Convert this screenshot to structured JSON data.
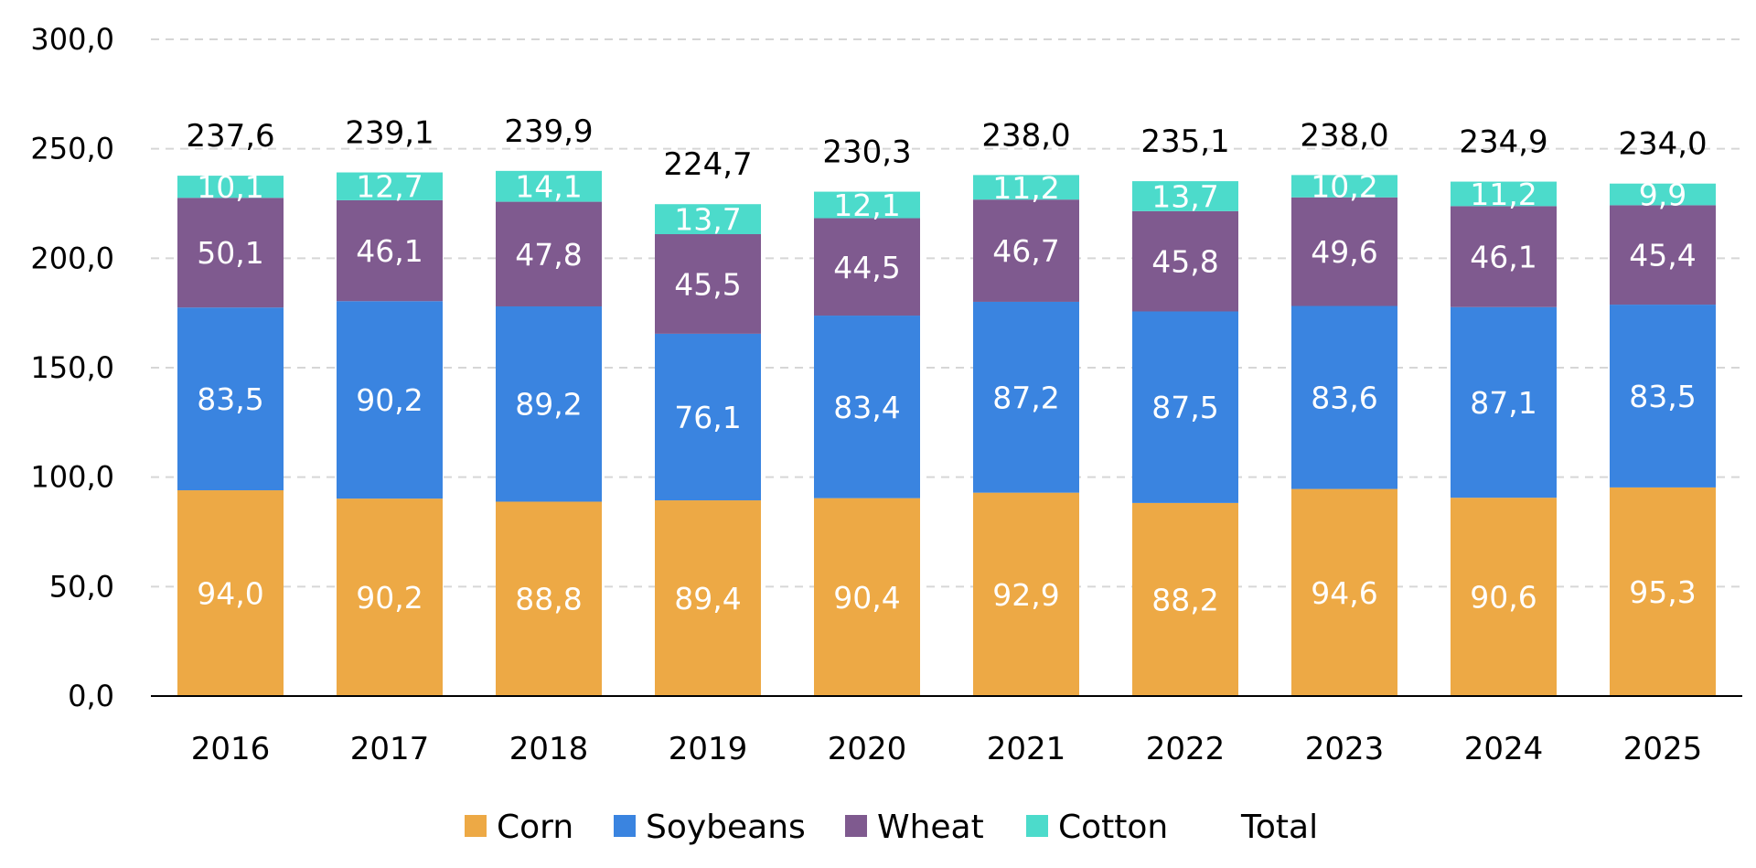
{
  "chart_data": {
    "type": "bar",
    "stacked": true,
    "categories": [
      "2016",
      "2017",
      "2018",
      "2019",
      "2020",
      "2021",
      "2022",
      "2023",
      "2024",
      "2025"
    ],
    "series": [
      {
        "name": "Corn",
        "color": "#EDA945",
        "values": [
          94.0,
          90.2,
          88.8,
          89.4,
          90.4,
          92.9,
          88.2,
          94.6,
          90.6,
          95.3
        ],
        "labels": [
          "94,0",
          "90,2",
          "88,8",
          "89,4",
          "90,4",
          "92,9",
          "88,2",
          "94,6",
          "90,6",
          "95,3"
        ]
      },
      {
        "name": "Soybeans",
        "color": "#3A84E0",
        "values": [
          83.5,
          90.2,
          89.2,
          76.1,
          83.4,
          87.2,
          87.5,
          83.6,
          87.1,
          83.5
        ],
        "labels": [
          "83,5",
          "90,2",
          "89,2",
          "76,1",
          "83,4",
          "87,2",
          "87,5",
          "83,6",
          "87,1",
          "83,5"
        ]
      },
      {
        "name": "Wheat",
        "color": "#7F5A8F",
        "values": [
          50.1,
          46.1,
          47.8,
          45.5,
          44.5,
          46.7,
          45.8,
          49.6,
          46.1,
          45.4
        ],
        "labels": [
          "50,1",
          "46,1",
          "47,8",
          "45,5",
          "44,5",
          "46,7",
          "45,8",
          "49,6",
          "46,1",
          "45,4"
        ]
      },
      {
        "name": "Cotton",
        "color": "#4CDBCB",
        "values": [
          10.1,
          12.7,
          14.1,
          13.7,
          12.1,
          11.2,
          13.7,
          10.2,
          11.2,
          9.9
        ],
        "labels": [
          "10,1",
          "12,7",
          "14,1",
          "13,7",
          "12,1",
          "11,2",
          "13,7",
          "10,2",
          "11,2",
          "9,9"
        ]
      }
    ],
    "totals": {
      "name": "Total",
      "values": [
        237.6,
        239.1,
        239.9,
        224.7,
        230.3,
        238.0,
        235.1,
        238.0,
        234.9,
        234.0
      ],
      "labels": [
        "237,6",
        "239,1",
        "239,9",
        "224,7",
        "230,3",
        "238,0",
        "235,1",
        "238,0",
        "234,9",
        "234,0"
      ]
    },
    "ylim": [
      0,
      300
    ],
    "yticks": [
      0,
      50,
      100,
      150,
      200,
      250,
      300
    ],
    "ytick_labels": [
      "0,0",
      "50,0",
      "100,0",
      "150,0",
      "200,0",
      "250,0",
      "300,0"
    ],
    "grid": true,
    "legend_position": "bottom-center",
    "title": "",
    "xlabel": "",
    "ylabel": ""
  }
}
